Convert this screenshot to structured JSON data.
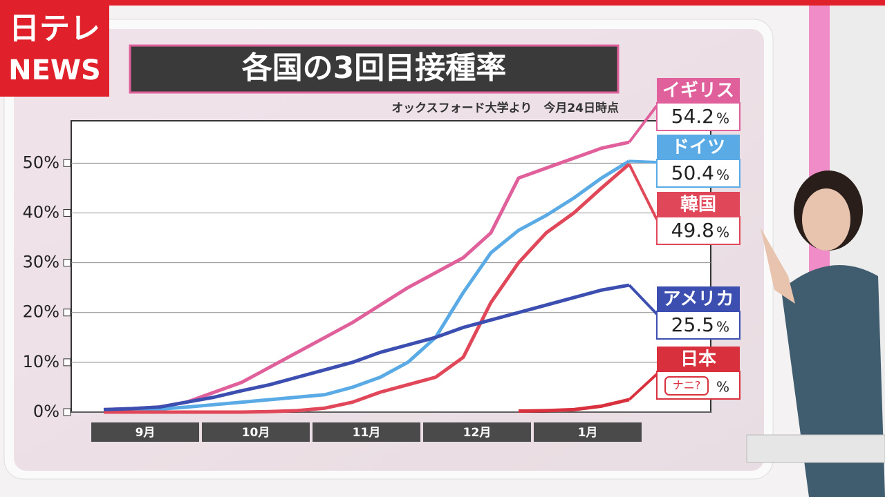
{
  "logo": {
    "top": "日テレ",
    "bottom": "NEWS"
  },
  "chart_data": {
    "type": "line",
    "title": "各国の3回目接種率",
    "subtitle": "オックスフォード大学より　今月24日時点",
    "categories": [
      null,
      "9月",
      null,
      null,
      null,
      "10月",
      null,
      null,
      null,
      "11月",
      null,
      null,
      null,
      "12月",
      null,
      null,
      null,
      "1月",
      null,
      null
    ],
    "ylim": [
      0,
      58.5
    ],
    "yticks": [
      {
        "value": 0,
        "label": "0%"
      },
      {
        "value": 10,
        "label": "10%"
      },
      {
        "value": 20,
        "label": "20%"
      },
      {
        "value": 30,
        "label": "30%"
      },
      {
        "value": 40,
        "label": "40%"
      },
      {
        "value": 50,
        "label": "50%"
      }
    ],
    "grid": true,
    "unit": "%",
    "series": [
      {
        "name": "イギリス",
        "color": "#e0609c",
        "end_value": 54.2,
        "values": [
          0.5,
          0.7,
          1,
          2,
          4,
          6,
          9,
          12,
          15,
          18,
          21.5,
          25,
          28,
          31,
          36,
          47,
          49,
          51,
          53,
          54.2
        ]
      },
      {
        "name": "ドイツ",
        "color": "#5aaae6",
        "end_value": 50.4,
        "values": [
          0.3,
          0.4,
          0.6,
          1,
          1.5,
          2,
          2.5,
          3,
          3.5,
          5,
          7,
          10,
          15,
          24,
          32,
          36.5,
          39.5,
          43,
          47,
          50.4
        ]
      },
      {
        "name": "韓国",
        "color": "#e0485a",
        "end_value": 49.8,
        "values": [
          0,
          0,
          0,
          0,
          0,
          0,
          0.1,
          0.3,
          0.8,
          2,
          4,
          5.5,
          7,
          11,
          22,
          30,
          36,
          40,
          45,
          49.8
        ]
      },
      {
        "name": "アメリカ",
        "color": "#3c4fb0",
        "end_value": 25.5,
        "values": [
          0.5,
          0.7,
          1,
          2,
          3,
          4.3,
          5.5,
          7,
          8.5,
          10,
          12,
          13.5,
          15,
          17,
          18.5,
          20,
          21.5,
          23,
          24.5,
          25.5
        ]
      },
      {
        "name": "日本",
        "color": "#d8303c",
        "end_text": "ナニ?",
        "values": [
          null,
          null,
          null,
          null,
          null,
          null,
          null,
          null,
          null,
          null,
          null,
          null,
          null,
          null,
          null,
          0.2,
          0.3,
          0.5,
          1.2,
          2.5
        ]
      }
    ]
  }
}
